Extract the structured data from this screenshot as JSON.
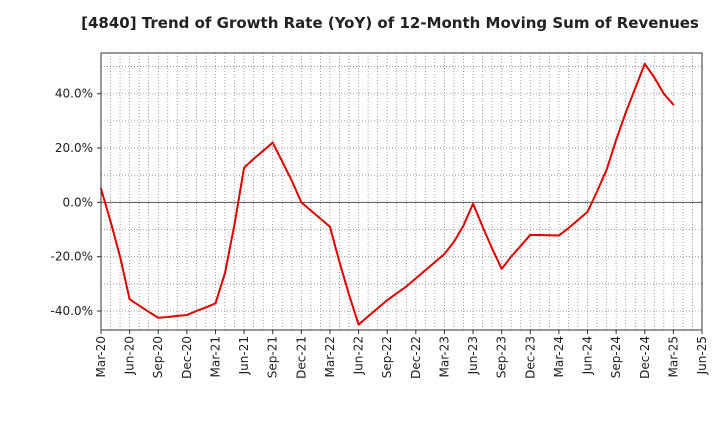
{
  "chart_data": {
    "type": "line",
    "title": "[4840]  Trend of Growth Rate (YoY) of 12-Month Moving Sum of Revenues",
    "xlabel": "",
    "ylabel": "",
    "x": [
      "Mar-20",
      "Jun-20",
      "Sep-20",
      "Dec-20",
      "Mar-21",
      "Jun-21",
      "Sep-21",
      "Dec-21",
      "Mar-22",
      "Jun-22",
      "Sep-22",
      "Dec-22",
      "Mar-23",
      "Jun-23",
      "Sep-23",
      "Dec-23",
      "Mar-24",
      "Jun-24",
      "Sep-24",
      "Dec-24",
      "Mar-25",
      "Jun-25"
    ],
    "series": [
      {
        "name": "",
        "color": "#dd0000",
        "x": [
          "Mar-20",
          "Apr-20",
          "May-20",
          "Jun-20",
          "Jul-20",
          "Aug-20",
          "Sep-20",
          "Oct-20",
          "Nov-20",
          "Dec-20",
          "Jan-21",
          "Feb-21",
          "Mar-21",
          "Apr-21",
          "May-21",
          "Jun-21",
          "Jul-21",
          "Aug-21",
          "Sep-21",
          "Oct-21",
          "Nov-21",
          "Dec-21",
          "Jan-22",
          "Feb-22",
          "Mar-22",
          "Apr-22",
          "May-22",
          "Jun-22",
          "Jul-22",
          "Aug-22",
          "Sep-22",
          "Oct-22",
          "Nov-22",
          "Dec-22",
          "Jan-23",
          "Feb-23",
          "Mar-23",
          "Apr-23",
          "May-23",
          "Jun-23",
          "Jul-23",
          "Aug-23",
          "Sep-23",
          "Oct-23",
          "Nov-23",
          "Dec-23",
          "Jan-24",
          "Feb-24",
          "Mar-24",
          "Apr-24",
          "May-24",
          "Jun-24",
          "Jul-24",
          "Aug-24",
          "Sep-24",
          "Oct-24",
          "Nov-24",
          "Dec-24",
          "Jan-25",
          "Feb-25",
          "Mar-25"
        ],
        "values": [
          5.0,
          -7.0,
          -20.0,
          -35.7,
          -38.0,
          -40.3,
          -42.5,
          -42.2,
          -41.8,
          -41.5,
          -40.0,
          -38.7,
          -37.2,
          -26.0,
          -8.0,
          12.8,
          16.0,
          19.0,
          22.0,
          15.0,
          8.0,
          0.0,
          -3.0,
          -6.0,
          -9.0,
          -22.0,
          -34.0,
          -45.0,
          -42.0,
          -39.0,
          -36.0,
          -33.5,
          -31.0,
          -28.0,
          -25.0,
          -22.0,
          -19.0,
          -14.5,
          -8.5,
          -0.5,
          -9.0,
          -17.0,
          -24.5,
          -20.0,
          -16.0,
          -12.0,
          -12.0,
          -12.1,
          -12.2,
          -9.5,
          -6.5,
          -3.5,
          4.0,
          12.0,
          23.0,
          33.0,
          42.0,
          51.0,
          46.0,
          40.0,
          36.0
        ]
      }
    ],
    "ylim": [
      -47,
      55
    ],
    "yticks": [
      40,
      20,
      0,
      -20,
      -40
    ],
    "ytick_labels": [
      "40.0%",
      "20.0%",
      "0.0%",
      "-20.0%",
      "-40.0%"
    ],
    "grid": true,
    "zero_line": true,
    "legend": "none"
  }
}
